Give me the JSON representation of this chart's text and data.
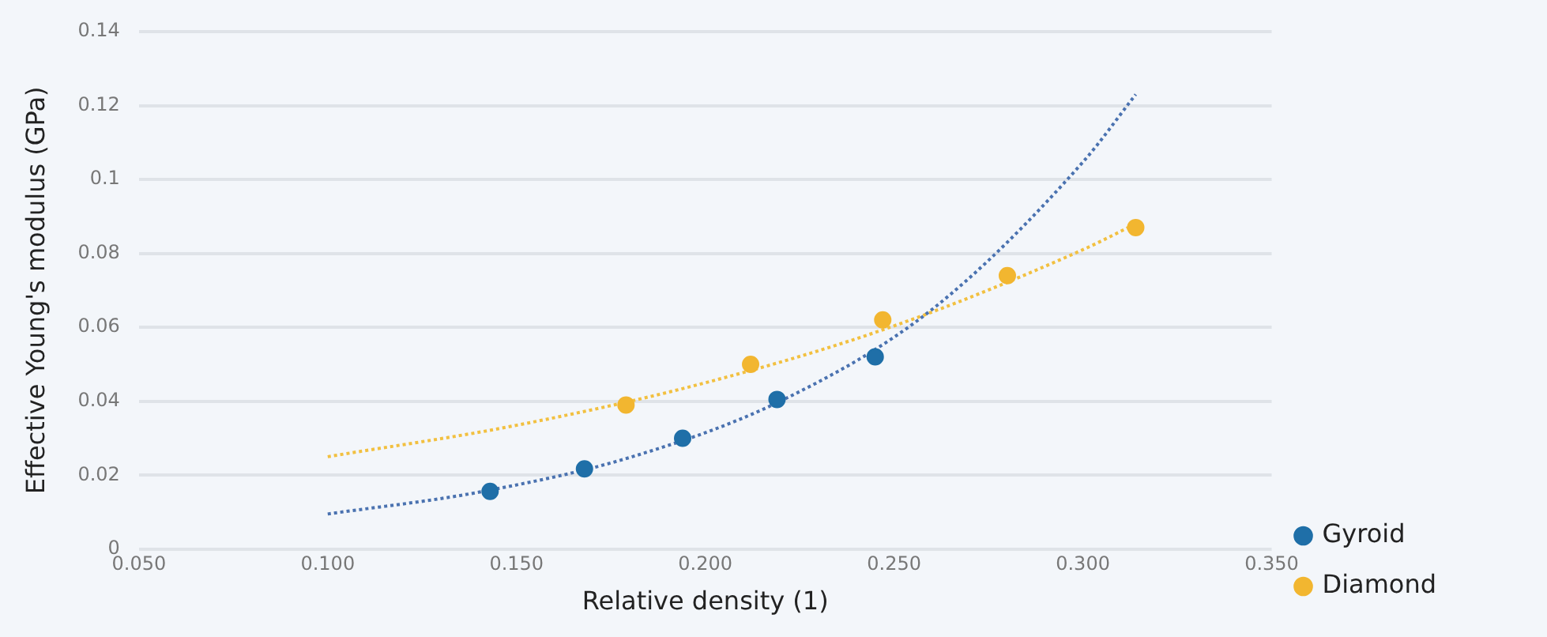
{
  "chart_data": {
    "type": "scatter",
    "xlabel": "Relative density (1)",
    "ylabel": "Effective Young's modulus (GPa)",
    "xlim": [
      0.05,
      0.35
    ],
    "xticks": [
      {
        "value": 0.05,
        "label": "0.050"
      },
      {
        "value": 0.1,
        "label": "0.100"
      },
      {
        "value": 0.15,
        "label": "0.150"
      },
      {
        "value": 0.2,
        "label": "0.200"
      },
      {
        "value": 0.25,
        "label": "0.250"
      },
      {
        "value": 0.3,
        "label": "0.300"
      },
      {
        "value": 0.35,
        "label": "0.350"
      }
    ],
    "ylim": [
      0,
      0.14
    ],
    "yticks": [
      0,
      0.02,
      0.04,
      0.06,
      0.08,
      0.1,
      0.12,
      0.14
    ],
    "grid": "y",
    "legend": "bottom right",
    "marker": "circle",
    "series": [
      {
        "name": "Gyroid",
        "color": "#1f6fa8",
        "x": [
          0.143,
          0.168,
          0.194,
          0.219,
          0.245
        ],
        "values": [
          0.0156,
          0.0217,
          0.03,
          0.0405,
          0.052
        ]
      },
      {
        "name": "Diamond",
        "color": "#f2b630",
        "x": [
          0.179,
          0.212,
          0.247,
          0.28,
          0.314
        ],
        "values": [
          0.039,
          0.05,
          0.062,
          0.074,
          0.087
        ]
      },
      {
        "type": "line",
        "color": "#4a72b0",
        "line_style": "dotted",
        "marker": "none",
        "x": [
          0.1,
          0.14,
          0.18,
          0.22,
          0.26,
          0.3,
          0.314
        ],
        "values": [
          0.0095,
          0.0154,
          0.0248,
          0.0401,
          0.0648,
          0.1047,
          0.123
        ]
      },
      {
        "type": "line",
        "color": "#f2c040",
        "line_style": "dotted",
        "marker": "none",
        "x": [
          0.1,
          0.15,
          0.2,
          0.25,
          0.3,
          0.314
        ],
        "values": [
          0.025,
          0.0335,
          0.045,
          0.0604,
          0.081,
          0.088
        ]
      }
    ]
  }
}
